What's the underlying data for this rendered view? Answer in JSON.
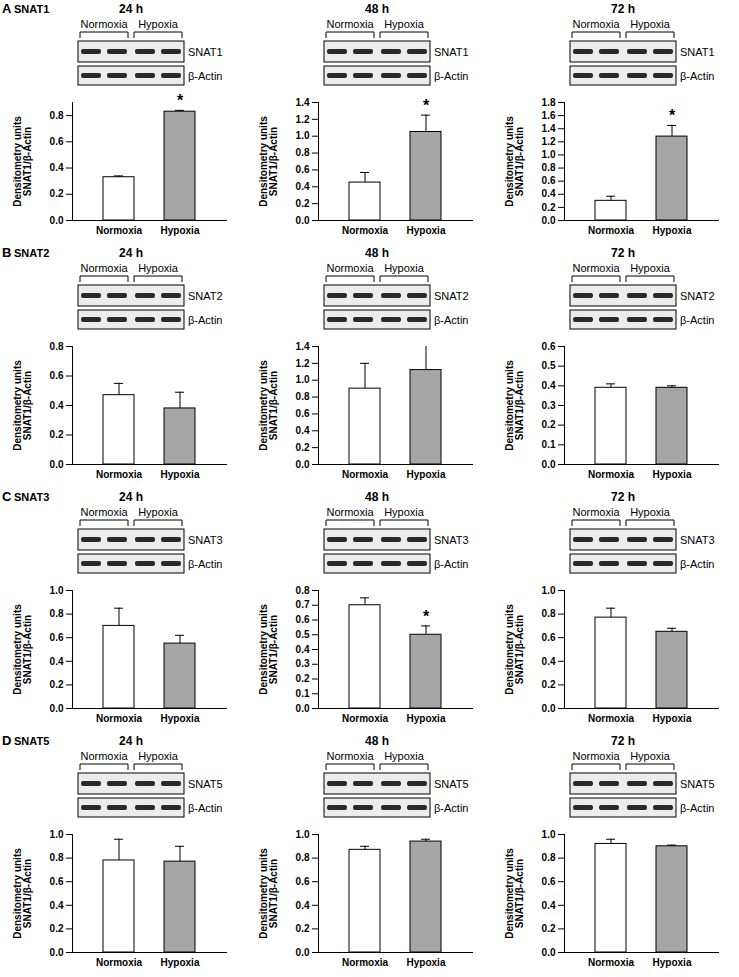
{
  "chart_data": [
    {
      "type": "bar",
      "panel_label": "A",
      "panel_title": "SNAT1",
      "title": "24 h",
      "blot_groups": [
        "Normoxia",
        "Hypoxia"
      ],
      "blot_bands": [
        "SNAT1",
        "β-Actin"
      ],
      "ylabel": [
        "Densitometry units",
        "SNAT1/β-Actin"
      ],
      "categories": [
        "Normoxia",
        "Hypoxia"
      ],
      "values": [
        0.33,
        0.83
      ],
      "errors": [
        0.01,
        0.01
      ],
      "colors": [
        "#ffffff",
        "#a6a6a6"
      ],
      "ylim": [
        0,
        0.9
      ],
      "yticks": [
        {
          "value": 0,
          "label": "0.0"
        },
        0.2,
        0.4,
        0.6,
        0.8
      ],
      "annotations": [
        {
          "category": "Hypoxia",
          "text": "*"
        }
      ]
    },
    {
      "type": "bar",
      "title": "48 h",
      "blot_groups": [
        "Normoxia",
        "Hypoxia"
      ],
      "blot_bands": [
        "SNAT1",
        "β-Actin"
      ],
      "ylabel": [
        "Densitometry units",
        "SNAT1/β-Actin"
      ],
      "categories": [
        "Normoxia",
        "Hypoxia"
      ],
      "values": [
        0.45,
        1.05
      ],
      "errors": [
        0.12,
        0.2
      ],
      "colors": [
        "#ffffff",
        "#a6a6a6"
      ],
      "ylim": [
        0,
        1.4
      ],
      "yticks": [
        {
          "value": 0,
          "label": "0.0"
        },
        0.2,
        0.4,
        0.6,
        0.8,
        {
          "value": 1,
          "label": "1.0"
        },
        1.2,
        1.4
      ],
      "annotations": [
        {
          "category": "Hypoxia",
          "text": "*"
        }
      ]
    },
    {
      "type": "bar",
      "title": "72 h",
      "blot_groups": [
        "Normoxia",
        "Hypoxia"
      ],
      "blot_bands": [
        "SNAT1",
        "β-Actin"
      ],
      "ylabel": [
        "Densitometry units",
        "SNAT1/β-Actin"
      ],
      "categories": [
        "Normoxia",
        "Hypoxia"
      ],
      "values": [
        0.3,
        1.28
      ],
      "errors": [
        0.07,
        0.17
      ],
      "colors": [
        "#ffffff",
        "#a6a6a6"
      ],
      "ylim": [
        0,
        1.8
      ],
      "yticks": [
        {
          "value": 0,
          "label": "0.0"
        },
        0.2,
        0.4,
        0.6,
        0.8,
        {
          "value": 1,
          "label": "1.0"
        },
        1.2,
        1.4,
        1.6,
        1.8
      ],
      "annotations": [
        {
          "category": "Hypoxia",
          "text": "*"
        }
      ]
    },
    {
      "type": "bar",
      "panel_label": "B",
      "panel_title": "SNAT2",
      "title": "24 h",
      "blot_groups": [
        "Normoxia",
        "Hypoxia"
      ],
      "blot_bands": [
        "SNAT2",
        "β-Actin"
      ],
      "ylabel": [
        "Densitometry units",
        "SNAT1/β-Actin"
      ],
      "categories": [
        "Normoxia",
        "Hypoxia"
      ],
      "values": [
        0.47,
        0.38
      ],
      "errors": [
        0.08,
        0.11
      ],
      "colors": [
        "#ffffff",
        "#a6a6a6"
      ],
      "ylim": [
        0,
        0.8
      ],
      "yticks": [
        {
          "value": 0,
          "label": "0.0"
        },
        0.2,
        0.4,
        0.6,
        0.8
      ],
      "annotations": []
    },
    {
      "type": "bar",
      "title": "48 h",
      "blot_groups": [
        "Normoxia",
        "Hypoxia"
      ],
      "blot_bands": [
        "SNAT2",
        "β-Actin"
      ],
      "ylabel": [
        "Densitometry units",
        "SNAT1/β-Actin"
      ],
      "categories": [
        "Normoxia",
        "Hypoxia"
      ],
      "values": [
        0.9,
        1.12
      ],
      "errors": [
        0.3,
        0.32
      ],
      "colors": [
        "#ffffff",
        "#a6a6a6"
      ],
      "ylim": [
        0,
        1.4
      ],
      "yticks": [
        {
          "value": 0,
          "label": "0.0"
        },
        0.2,
        0.4,
        0.6,
        0.8,
        {
          "value": 1,
          "label": "1.0"
        },
        1.2,
        1.4
      ],
      "annotations": []
    },
    {
      "type": "bar",
      "title": "72 h",
      "blot_groups": [
        "Normoxia",
        "Hypoxia"
      ],
      "blot_bands": [
        "SNAT2",
        "β-Actin"
      ],
      "ylabel": [
        "Densitometry units",
        "SNAT1/β-Actin"
      ],
      "categories": [
        "Normoxia",
        "Hypoxia"
      ],
      "values": [
        0.39,
        0.39
      ],
      "errors": [
        0.02,
        0.01
      ],
      "colors": [
        "#ffffff",
        "#a6a6a6"
      ],
      "ylim": [
        0,
        0.6
      ],
      "yticks": [
        {
          "value": 0,
          "label": "0.0"
        },
        0.1,
        0.2,
        0.3,
        0.4,
        0.5,
        0.6
      ],
      "annotations": []
    },
    {
      "type": "bar",
      "panel_label": "C",
      "panel_title": "SNAT3",
      "title": "24 h",
      "blot_groups": [
        "Normoxia",
        "Hypoxia"
      ],
      "blot_bands": [
        "SNAT3",
        "β-Actin"
      ],
      "ylabel": [
        "Densitometry units",
        "SNAT1/β-Actin"
      ],
      "categories": [
        "Normoxia",
        "Hypoxia"
      ],
      "values": [
        0.7,
        0.55
      ],
      "errors": [
        0.15,
        0.07
      ],
      "colors": [
        "#ffffff",
        "#a6a6a6"
      ],
      "ylim": [
        0,
        1
      ],
      "yticks": [
        {
          "value": 0,
          "label": "0.0"
        },
        0.2,
        0.4,
        0.6,
        0.8,
        {
          "value": 1,
          "label": "1.0"
        }
      ],
      "annotations": []
    },
    {
      "type": "bar",
      "title": "48 h",
      "blot_groups": [
        "Normoxia",
        "Hypoxia"
      ],
      "blot_bands": [
        "SNAT3",
        "β-Actin"
      ],
      "ylabel": [
        "Densitometry units",
        "SNAT1/β-Actin"
      ],
      "categories": [
        "Normoxia",
        "Hypoxia"
      ],
      "values": [
        0.7,
        0.5
      ],
      "errors": [
        0.05,
        0.06
      ],
      "colors": [
        "#ffffff",
        "#a6a6a6"
      ],
      "ylim": [
        0,
        0.8
      ],
      "yticks": [
        {
          "value": 0,
          "label": "0.0"
        },
        0.1,
        0.2,
        0.3,
        0.4,
        0.5,
        0.6,
        0.7,
        0.8
      ],
      "annotations": [
        {
          "category": "Hypoxia",
          "text": "*"
        }
      ]
    },
    {
      "type": "bar",
      "title": "72 h",
      "blot_groups": [
        "Normoxia",
        "Hypoxia"
      ],
      "blot_bands": [
        "SNAT3",
        "β-Actin"
      ],
      "ylabel": [
        "Densitometry units",
        "SNAT1/β-Actin"
      ],
      "categories": [
        "Normoxia",
        "Hypoxia"
      ],
      "values": [
        0.77,
        0.65
      ],
      "errors": [
        0.08,
        0.03
      ],
      "colors": [
        "#ffffff",
        "#a6a6a6"
      ],
      "ylim": [
        0,
        1
      ],
      "yticks": [
        {
          "value": 0,
          "label": "0.0"
        },
        0.2,
        0.4,
        0.6,
        0.8,
        {
          "value": 1,
          "label": "1.0"
        }
      ],
      "annotations": []
    },
    {
      "type": "bar",
      "panel_label": "D",
      "panel_title": "SNAT5",
      "title": "24 h",
      "blot_groups": [
        "Normoxia",
        "Hypoxia"
      ],
      "blot_bands": [
        "SNAT5",
        "β-Actin"
      ],
      "ylabel": [
        "Densitometry units",
        "SNAT1/β-Actin"
      ],
      "categories": [
        "Normoxia",
        "Hypoxia"
      ],
      "values": [
        0.78,
        0.77
      ],
      "errors": [
        0.18,
        0.13
      ],
      "colors": [
        "#ffffff",
        "#a6a6a6"
      ],
      "ylim": [
        0,
        1
      ],
      "yticks": [
        {
          "value": 0,
          "label": "0.0"
        },
        0.2,
        0.4,
        0.6,
        0.8,
        {
          "value": 1,
          "label": "1.0"
        }
      ],
      "annotations": []
    },
    {
      "type": "bar",
      "title": "48 h",
      "blot_groups": [
        "Normoxia",
        "Hypoxia"
      ],
      "blot_bands": [
        "SNAT5",
        "β-Actin"
      ],
      "ylabel": [
        "Densitometry units",
        "SNAT1/β-Actin"
      ],
      "categories": [
        "Normoxia",
        "Hypoxia"
      ],
      "values": [
        0.87,
        0.94
      ],
      "errors": [
        0.03,
        0.02
      ],
      "colors": [
        "#ffffff",
        "#a6a6a6"
      ],
      "ylim": [
        0,
        1
      ],
      "yticks": [
        {
          "value": 0,
          "label": "0.0"
        },
        0.2,
        0.4,
        0.6,
        0.8,
        {
          "value": 1,
          "label": "1.0"
        }
      ],
      "annotations": []
    },
    {
      "type": "bar",
      "title": "72 h",
      "blot_groups": [
        "Normoxia",
        "Hypoxia"
      ],
      "blot_bands": [
        "SNAT5",
        "β-Actin"
      ],
      "ylabel": [
        "Densitometry units",
        "SNAT1/β-Actin"
      ],
      "categories": [
        "Normoxia",
        "Hypoxia"
      ],
      "values": [
        0.92,
        0.9
      ],
      "errors": [
        0.04,
        0.01
      ],
      "colors": [
        "#ffffff",
        "#a6a6a6"
      ],
      "ylim": [
        0,
        1
      ],
      "yticks": [
        {
          "value": 0,
          "label": "0.0"
        },
        0.2,
        0.4,
        0.6,
        0.8,
        {
          "value": 1,
          "label": "1.0"
        }
      ],
      "annotations": []
    }
  ]
}
